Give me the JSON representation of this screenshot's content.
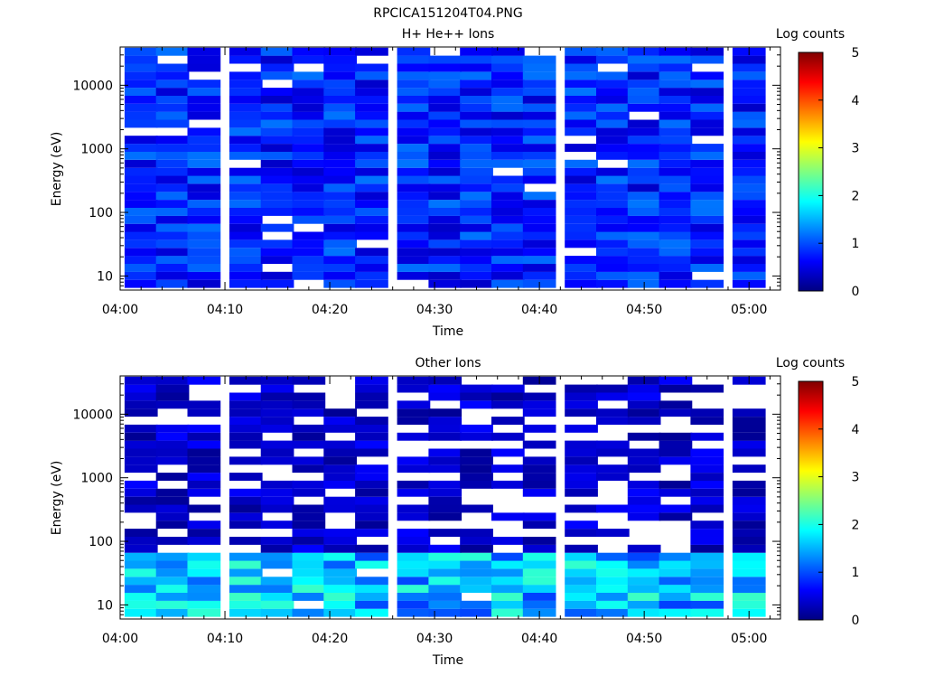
{
  "figure_title": "RPCICA151204T04.PNG",
  "chart_data": [
    {
      "type": "heatmap",
      "title": "H+ He++ Ions",
      "xlabel": "Time",
      "ylabel": "Energy (eV)",
      "x_ticks": [
        "04:00",
        "04:10",
        "04:20",
        "04:30",
        "04:40",
        "04:50",
        "05:00"
      ],
      "x_range": [
        "04:00",
        "05:03"
      ],
      "time_bins": [
        "04:02",
        "04:05",
        "04:08",
        "04:12",
        "04:15",
        "04:18",
        "04:21",
        "04:24",
        "04:28",
        "04:31",
        "04:34",
        "04:37",
        "04:40",
        "04:44",
        "04:47",
        "04:50",
        "04:53",
        "04:56",
        "05:00"
      ],
      "y_scale": "log",
      "y_ticks": [
        10,
        100,
        1000,
        10000
      ],
      "y_range": [
        6,
        40000
      ],
      "energy_bins": 30,
      "colorbar": {
        "label": "Log counts",
        "range": [
          0,
          5
        ],
        "ticks": [
          0,
          1,
          2,
          3,
          4,
          5
        ]
      },
      "description_level": "mostly 0.3-1.2 log counts across all energies"
    },
    {
      "type": "heatmap",
      "title": "Other Ions",
      "xlabel": "Time",
      "ylabel": "Energy (eV)",
      "x_ticks": [
        "04:00",
        "04:10",
        "04:20",
        "04:30",
        "04:40",
        "04:50",
        "05:00"
      ],
      "x_range": [
        "04:00",
        "05:03"
      ],
      "time_bins": [
        "04:02",
        "04:05",
        "04:08",
        "04:12",
        "04:15",
        "04:18",
        "04:21",
        "04:24",
        "04:28",
        "04:31",
        "04:34",
        "04:37",
        "04:40",
        "04:44",
        "04:47",
        "04:50",
        "04:53",
        "04:56",
        "05:00"
      ],
      "y_scale": "log",
      "y_ticks": [
        10,
        100,
        1000,
        10000
      ],
      "y_range": [
        6,
        40000
      ],
      "energy_bins": 30,
      "colorbar": {
        "label": "Log counts",
        "range": [
          0,
          5
        ],
        "ticks": [
          0,
          1,
          2,
          3,
          4,
          5
        ]
      },
      "description_level": "sparse ~0.2 log counts at high energy, rising to 1.5-2.3 log counts below ~60 eV"
    }
  ]
}
